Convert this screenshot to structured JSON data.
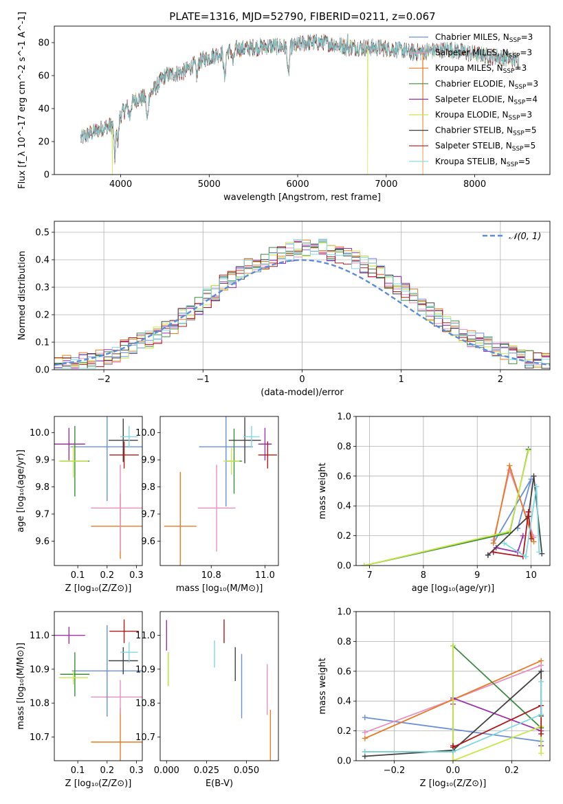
{
  "figure_title": "PLATE=1316, MJD=52790, FIBERID=0211, z=0.067",
  "colors": {
    "chabrier_miles": "#6a8fd8",
    "salpeter_miles": "#e88fc0",
    "kroupa_miles": "#e87a22",
    "chabrier_elodie": "#3c8a3c",
    "salpeter_elodie": "#9b30a8",
    "kroupa_elodie": "#c8e84a",
    "chabrier_stelib": "#404040",
    "salpeter_stelib": "#b01818",
    "kroupa_stelib": "#80d8e0",
    "normal_curve": "#5b8bd9"
  },
  "chart_data": [
    {
      "id": "spectrum",
      "type": "line",
      "title": "PLATE=1316, MJD=52790, FIBERID=0211, z=0.067",
      "xlabel": "wavelength [Angstrom, rest frame]",
      "ylabel": "Flux [f_λ 10^-17 erg cm^-2 s^-1 A^-1]",
      "xlim": [
        3250,
        8850
      ],
      "ylim": [
        0,
        90
      ],
      "xticks": [
        "4000",
        "5000",
        "6000",
        "7000",
        "8000"
      ],
      "yticks": [
        "0",
        "20",
        "40",
        "60",
        "80"
      ],
      "legend_position": "top-right",
      "legend": [
        {
          "label": "Chabrier MILES, N",
          "sub": "SSP",
          "tail": "=3",
          "color": "#6a8fd8"
        },
        {
          "label": "Salpeter MILES, N",
          "sub": "SSP",
          "tail": "=3",
          "color": "#e88fc0"
        },
        {
          "label": "Kroupa MILES, N",
          "sub": "SSP",
          "tail": "=3",
          "color": "#e87a22"
        },
        {
          "label": "Chabrier ELODIE, N",
          "sub": "SSP",
          "tail": "=3",
          "color": "#3c8a3c"
        },
        {
          "label": "Salpeter ELODIE, N",
          "sub": "SSP",
          "tail": "=4",
          "color": "#9b30a8"
        },
        {
          "label": "Kroupa ELODIE, N",
          "sub": "SSP",
          "tail": "=3",
          "color": "#c8e84a"
        },
        {
          "label": "Chabrier STELIB, N",
          "sub": "SSP",
          "tail": "=5",
          "color": "#404040"
        },
        {
          "label": "Salpeter STELIB, N",
          "sub": "SSP",
          "tail": "=5",
          "color": "#b01818"
        },
        {
          "label": "Kroupa STELIB, N",
          "sub": "SSP",
          "tail": "=5",
          "color": "#80d8e0"
        }
      ],
      "continuum": {
        "wavelength": [
          3550,
          3700,
          3800,
          3900,
          4000,
          4100,
          4200,
          4300,
          4400,
          4500,
          4700,
          4900,
          5100,
          5300,
          5500,
          5700,
          5900,
          6100,
          6300,
          6500,
          6700,
          6900,
          7100,
          7300,
          7500,
          7700,
          8000,
          8300,
          8500
        ],
        "flux": [
          22,
          26,
          28,
          30,
          36,
          43,
          46,
          47,
          53,
          60,
          62,
          69,
          73,
          76,
          77,
          78,
          77,
          80,
          80,
          78,
          77,
          77,
          76,
          74,
          75,
          76,
          73,
          71,
          69
        ]
      },
      "absorption_dips": [
        {
          "wavelength": 3934,
          "depth": 22
        },
        {
          "wavelength": 3969,
          "depth": 14
        },
        {
          "wavelength": 4102,
          "depth": 8
        },
        {
          "wavelength": 4300,
          "depth": 14
        },
        {
          "wavelength": 4861,
          "depth": 8
        },
        {
          "wavelength": 5175,
          "depth": 16
        },
        {
          "wavelength": 5270,
          "depth": 8
        },
        {
          "wavelength": 5895,
          "depth": 18
        },
        {
          "wavelength": 6563,
          "depth": 6
        },
        {
          "wavelength": 8542,
          "depth": 6
        }
      ],
      "emission_peaks": [
        {
          "wavelength": 6563,
          "height": 10
        }
      ],
      "glitches": [
        {
          "wavelength": 3905,
          "color": "#c8e84a"
        },
        {
          "wavelength": 6790,
          "color": "#c8e84a"
        },
        {
          "wavelength": 7415,
          "color": "#e87a22"
        }
      ]
    },
    {
      "id": "residuals",
      "type": "histogram",
      "xlabel": "(data-model)/error",
      "ylabel": "Normed distribution",
      "xlim": [
        -2.5,
        2.5
      ],
      "ylim": [
        0,
        0.54
      ],
      "xticks": [
        "−2",
        "−1",
        "0",
        "1",
        "2"
      ],
      "yticks": [
        "0.0",
        "0.1",
        "0.2",
        "0.3",
        "0.4",
        "0.5"
      ],
      "grid": true,
      "legend_position": "top-right",
      "legend_label": "𝒩(0, 1)",
      "bin_width": 0.1,
      "base_profile": [
        0.015,
        0.02,
        0.025,
        0.03,
        0.035,
        0.04,
        0.05,
        0.06,
        0.075,
        0.09,
        0.1,
        0.11,
        0.125,
        0.145,
        0.165,
        0.19,
        0.21,
        0.235,
        0.26,
        0.285,
        0.31,
        0.33,
        0.35,
        0.37,
        0.385,
        0.395,
        0.41,
        0.42,
        0.43,
        0.44,
        0.445,
        0.445,
        0.44,
        0.43,
        0.42,
        0.41,
        0.4,
        0.385,
        0.37,
        0.35,
        0.33,
        0.31,
        0.285,
        0.26,
        0.235,
        0.21,
        0.19,
        0.165,
        0.145,
        0.125,
        0.11,
        0.1,
        0.09,
        0.075,
        0.065,
        0.055,
        0.05,
        0.04,
        0.035,
        0.03
      ],
      "series_colors": [
        "#6a8fd8",
        "#e88fc0",
        "#e87a22",
        "#3c8a3c",
        "#9b30a8",
        "#c8e84a",
        "#404040",
        "#b01818",
        "#80d8e0"
      ]
    },
    {
      "id": "age_vs_Z",
      "type": "errorbar",
      "xlabel": "Z [log₁₀(Z/Z⊙)]",
      "ylabel": "age  [log₁₀(age/yr)]",
      "xlim": [
        0.02,
        0.32
      ],
      "ylim": [
        9.51,
        10.06
      ],
      "xticks": [
        "0.1",
        "0.2",
        "0.3"
      ],
      "yticks": [
        "9.6",
        "9.7",
        "9.8",
        "9.9",
        "10.0"
      ],
      "points": [
        {
          "x": 0.245,
          "y": 9.655,
          "xerr": 0.1,
          "yerr": 0.12,
          "color": "#e87a22"
        },
        {
          "x": 0.245,
          "y": 9.722,
          "xerr": 0.1,
          "yerr": 0.16,
          "color": "#e88fc0"
        },
        {
          "x": 0.2,
          "y": 9.948,
          "xerr": 0.125,
          "yerr": 0.2,
          "color": "#6a8fd8"
        },
        {
          "x": 0.09,
          "y": 9.895,
          "xerr": 0.05,
          "yerr": 0.13,
          "color": "#3c8a3c"
        },
        {
          "x": 0.085,
          "y": 9.895,
          "xerr": 0.05,
          "yerr": 0.06,
          "color": "#c8e84a"
        },
        {
          "x": 0.07,
          "y": 9.958,
          "xerr": 0.055,
          "yerr": 0.06,
          "color": "#9b30a8"
        },
        {
          "x": 0.255,
          "y": 9.972,
          "xerr": 0.05,
          "yerr": 0.08,
          "color": "#404040"
        },
        {
          "x": 0.258,
          "y": 9.918,
          "xerr": 0.05,
          "yerr": 0.05,
          "color": "#b01818"
        },
        {
          "x": 0.275,
          "y": 9.985,
          "xerr": 0.03,
          "yerr": 0.04,
          "color": "#80d8e0"
        }
      ]
    },
    {
      "id": "age_vs_mass",
      "type": "errorbar",
      "xlabel": "mass [log₁₀(M/M⊙)]",
      "ylabel": "",
      "xlim": [
        10.61,
        11.05
      ],
      "ylim": [
        9.51,
        10.06
      ],
      "xticks": [
        "10.8",
        "11.0"
      ],
      "yticks": [
        "9.6",
        "9.7",
        "9.8",
        "9.9",
        "10.0"
      ],
      "points": [
        {
          "x": 10.685,
          "y": 9.655,
          "xerr": 0.06,
          "yerr": 0.2,
          "color": "#e87a22"
        },
        {
          "x": 10.82,
          "y": 9.722,
          "xerr": 0.07,
          "yerr": 0.16,
          "color": "#e88fc0"
        },
        {
          "x": 10.855,
          "y": 9.948,
          "xerr": 0.1,
          "yerr": 0.22,
          "color": "#6a8fd8"
        },
        {
          "x": 10.885,
          "y": 9.895,
          "xerr": 0.03,
          "yerr": 0.12,
          "color": "#3c8a3c"
        },
        {
          "x": 10.875,
          "y": 9.895,
          "xerr": 0.03,
          "yerr": 0.05,
          "color": "#c8e84a"
        },
        {
          "x": 11.0,
          "y": 9.958,
          "xerr": 0.025,
          "yerr": 0.06,
          "color": "#9b30a8"
        },
        {
          "x": 10.925,
          "y": 9.972,
          "xerr": 0.06,
          "yerr": 0.085,
          "color": "#404040"
        },
        {
          "x": 11.01,
          "y": 9.918,
          "xerr": 0.035,
          "yerr": 0.05,
          "color": "#b01818"
        },
        {
          "x": 10.95,
          "y": 9.985,
          "xerr": 0.03,
          "yerr": 0.04,
          "color": "#80d8e0"
        }
      ]
    },
    {
      "id": "weight_vs_age",
      "type": "line",
      "xlabel": "age  [log₁₀(age/yr)]",
      "ylabel": "mass weight",
      "xlim": [
        6.75,
        10.35
      ],
      "ylim": [
        0,
        1
      ],
      "xticks": [
        "7",
        "8",
        "9",
        "10"
      ],
      "yticks": [
        "0.0",
        "0.2",
        "0.4",
        "0.6",
        "0.8",
        "1.0"
      ],
      "grid": true,
      "series": [
        {
          "color": "#6a8fd8",
          "x": [
            9.3,
            10.0,
            9.75
          ],
          "y": [
            0.15,
            0.58,
            0.25
          ]
        },
        {
          "color": "#e88fc0",
          "x": [
            9.3,
            9.6,
            10.05
          ],
          "y": [
            0.17,
            0.64,
            0.19
          ]
        },
        {
          "color": "#e87a22",
          "x": [
            9.3,
            9.6,
            10.05
          ],
          "y": [
            0.15,
            0.67,
            0.16
          ]
        },
        {
          "color": "#3c8a3c",
          "x": [
            6.9,
            9.6,
            9.95
          ],
          "y": [
            0.0,
            0.22,
            0.78
          ]
        },
        {
          "color": "#9b30a8",
          "x": [
            9.2,
            9.35,
            9.75,
            9.85
          ],
          "y": [
            0.07,
            0.12,
            0.09,
            0.2
          ]
        },
        {
          "color": "#c8e84a",
          "x": [
            6.9,
            9.6,
            9.95
          ],
          "y": [
            0.0,
            0.23,
            0.77
          ]
        },
        {
          "color": "#404040",
          "x": [
            9.2,
            9.95,
            10.05,
            10.2
          ],
          "y": [
            0.07,
            0.33,
            0.6,
            0.08
          ]
        },
        {
          "color": "#b01818",
          "x": [
            9.3,
            9.85,
            9.95,
            10.0
          ],
          "y": [
            0.09,
            0.06,
            0.36,
            0.18
          ]
        },
        {
          "color": "#80d8e0",
          "x": [
            9.5,
            9.9,
            10.1,
            10.15
          ],
          "y": [
            0.15,
            0.06,
            0.53,
            0.09
          ]
        }
      ]
    },
    {
      "id": "mass_vs_Z",
      "type": "errorbar",
      "xlabel": "Z [log₁₀(Z/Z⊙)]",
      "ylabel": "mass [log₁₀(M/M⊙)]",
      "xlim": [
        0.02,
        0.32
      ],
      "ylim": [
        10.63,
        11.07
      ],
      "xticks": [
        "0.1",
        "0.2",
        "0.3"
      ],
      "yticks": [
        "10.7",
        "10.8",
        "10.9",
        "11.0"
      ],
      "points": [
        {
          "x": 0.245,
          "y": 10.685,
          "xerr": 0.1,
          "yerr": 0.1,
          "color": "#e87a22"
        },
        {
          "x": 0.245,
          "y": 10.818,
          "xerr": 0.1,
          "yerr": 0.05,
          "color": "#e88fc0"
        },
        {
          "x": 0.2,
          "y": 10.895,
          "xerr": 0.12,
          "yerr": 0.135,
          "color": "#6a8fd8"
        },
        {
          "x": 0.09,
          "y": 10.885,
          "xerr": 0.05,
          "yerr": 0.065,
          "color": "#3c8a3c"
        },
        {
          "x": 0.085,
          "y": 10.875,
          "xerr": 0.05,
          "yerr": 0.02,
          "color": "#c8e84a"
        },
        {
          "x": 0.07,
          "y": 11.0,
          "xerr": 0.055,
          "yerr": 0.025,
          "color": "#9b30a8"
        },
        {
          "x": 0.255,
          "y": 10.925,
          "xerr": 0.05,
          "yerr": 0.04,
          "color": "#404040"
        },
        {
          "x": 0.258,
          "y": 11.012,
          "xerr": 0.05,
          "yerr": 0.035,
          "color": "#b01818"
        },
        {
          "x": 0.275,
          "y": 10.95,
          "xerr": 0.03,
          "yerr": 0.03,
          "color": "#80d8e0"
        }
      ]
    },
    {
      "id": "mass_vs_ebv",
      "type": "errorbar",
      "xlabel": "E(B-V)",
      "ylabel": "",
      "xlim": [
        -0.004,
        0.07
      ],
      "ylim": [
        10.63,
        11.07
      ],
      "xticks": [
        "0.000",
        "0.025",
        "0.050"
      ],
      "yticks": [
        "10.7",
        "10.8",
        "10.9",
        "11.0"
      ],
      "points": [
        {
          "x": 0.065,
          "y": 10.705,
          "xerr": 0,
          "yerr": 0.075,
          "color": "#e87a22"
        },
        {
          "x": 0.063,
          "y": 10.84,
          "xerr": 0,
          "yerr": 0.075,
          "color": "#e88fc0"
        },
        {
          "x": 0.047,
          "y": 10.85,
          "xerr": 0,
          "yerr": 0.095,
          "color": "#6a8fd8"
        },
        {
          "x": 0.001,
          "y": 10.9,
          "xerr": 0,
          "yerr": 0.05,
          "color": "#3c8a3c"
        },
        {
          "x": 0.0,
          "y": 11.0,
          "xerr": 0,
          "yerr": 0.045,
          "color": "#9b30a8"
        },
        {
          "x": 0.001,
          "y": 10.9,
          "xerr": 0,
          "yerr": 0.05,
          "color": "#c8e84a"
        },
        {
          "x": 0.043,
          "y": 10.915,
          "xerr": 0,
          "yerr": 0.05,
          "color": "#404040"
        },
        {
          "x": 0.036,
          "y": 11.012,
          "xerr": 0,
          "yerr": 0.035,
          "color": "#b01818"
        },
        {
          "x": 0.03,
          "y": 10.945,
          "xerr": 0,
          "yerr": 0.04,
          "color": "#80d8e0"
        }
      ]
    },
    {
      "id": "weight_vs_Z",
      "type": "line",
      "xlabel": "Z [log₁₀(Z/Z⊙)]",
      "ylabel": "mass weight",
      "xlim": [
        -0.33,
        0.33
      ],
      "ylim": [
        0,
        1
      ],
      "xticks": [
        "−0.2",
        "0.0",
        "0.2"
      ],
      "yticks": [
        "0.0",
        "0.2",
        "0.4",
        "0.6",
        "0.8",
        "1.0"
      ],
      "grid": true,
      "series": [
        {
          "color": "#6a8fd8",
          "x": [
            -0.3,
            0.0,
            0.3
          ],
          "y": [
            0.29,
            0.21,
            0.13
          ]
        },
        {
          "color": "#e88fc0",
          "x": [
            -0.3,
            0.0,
            0.3
          ],
          "y": [
            0.19,
            0.41,
            0.64
          ]
        },
        {
          "color": "#e87a22",
          "x": [
            -0.3,
            0.0,
            0.3
          ],
          "y": [
            0.15,
            0.41,
            0.67
          ]
        },
        {
          "color": "#3c8a3c",
          "x": [
            -0.3,
            0.0,
            0.0,
            0.3
          ],
          "y": [
            0.06,
            0.06,
            0.77,
            0.22
          ]
        },
        {
          "color": "#9b30a8",
          "x": [
            0.0,
            0.0,
            0.3,
            0.3
          ],
          "y": [
            0.38,
            0.42,
            0.2,
            0.1
          ]
        },
        {
          "color": "#c8e84a",
          "x": [
            0.0,
            0.0,
            0.3,
            0.3
          ],
          "y": [
            0.77,
            0.0,
            0.23,
            0.05
          ]
        },
        {
          "color": "#404040",
          "x": [
            -0.3,
            0.0,
            0.3,
            0.3
          ],
          "y": [
            0.03,
            0.07,
            0.6,
            0.3
          ]
        },
        {
          "color": "#b01818",
          "x": [
            0.0,
            0.0,
            0.3,
            0.3
          ],
          "y": [
            0.1,
            0.09,
            0.37,
            0.18
          ]
        },
        {
          "color": "#80d8e0",
          "x": [
            -0.3,
            0.0,
            0.3,
            0.3
          ],
          "y": [
            0.06,
            0.06,
            0.31,
            0.53
          ]
        }
      ]
    }
  ]
}
